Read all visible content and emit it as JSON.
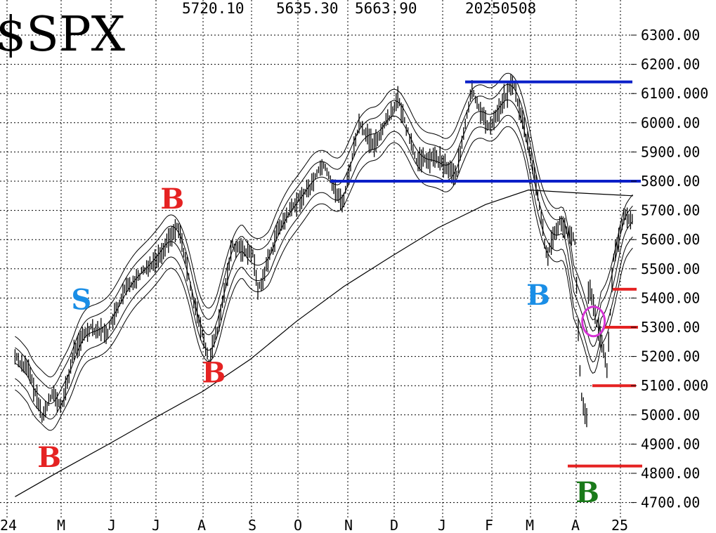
{
  "header": {
    "symbol": "$SPX",
    "high": "5720.10",
    "low": "5635.30",
    "close": "5663.90",
    "date": "20250508"
  },
  "chart_data": {
    "type": "line",
    "title": "$SPX",
    "y_ticks": [
      "6300.00",
      "6200.00",
      "6100.000",
      "6000.00",
      "5900.00",
      "5800.00",
      "5700.00",
      "5600.00",
      "5500.00",
      "5400.00",
      "5300.00",
      "5200.00",
      "5100.000",
      "5000.00",
      "4900.00",
      "4800.00",
      "4700.00"
    ],
    "x_ticks": [
      "24",
      "M",
      "J",
      "J",
      "A",
      "S",
      "O",
      "N",
      "D",
      "J",
      "F",
      "M",
      "A",
      "25"
    ],
    "ylim": [
      4690,
      6330
    ],
    "grid": true,
    "price": {
      "x": [
        "2024-04-01",
        "2024-04-10",
        "2024-04-19",
        "2024-04-25",
        "2024-05-01",
        "2024-05-10",
        "2024-05-20",
        "2024-05-31",
        "2024-06-12",
        "2024-06-21",
        "2024-07-03",
        "2024-07-16",
        "2024-07-25",
        "2024-08-05",
        "2024-08-12",
        "2024-08-20",
        "2024-09-03",
        "2024-09-06",
        "2024-09-19",
        "2024-09-30",
        "2024-10-10",
        "2024-10-18",
        "2024-10-31",
        "2024-11-11",
        "2024-11-20",
        "2024-12-06",
        "2024-12-18",
        "2024-12-31",
        "2025-01-13",
        "2025-01-23",
        "2025-02-03",
        "2025-02-19",
        "2025-03-04",
        "2025-03-13",
        "2025-03-21",
        "2025-03-31",
        "2025-04-04",
        "2025-04-08",
        "2025-04-09",
        "2025-04-16",
        "2025-04-21",
        "2025-04-25",
        "2025-05-02",
        "2025-05-08"
      ],
      "y": [
        5200,
        5150,
        4990,
        5080,
        5020,
        5230,
        5300,
        5280,
        5430,
        5480,
        5540,
        5650,
        5420,
        5180,
        5320,
        5580,
        5550,
        5420,
        5630,
        5720,
        5780,
        5860,
        5720,
        6000,
        5920,
        6080,
        5870,
        5880,
        5820,
        6110,
        5980,
        6140,
        5850,
        5540,
        5660,
        5610,
        5070,
        4980,
        5450,
        5280,
        5160,
        5520,
        5680,
        5663.9
      ]
    },
    "moving_average_200": {
      "x": [
        "2024-04-01",
        "2024-05-01",
        "2024-06-01",
        "2024-07-01",
        "2024-08-01",
        "2024-09-01",
        "2024-10-01",
        "2024-11-01",
        "2024-12-01",
        "2025-01-01",
        "2025-02-01",
        "2025-03-01",
        "2025-04-01",
        "2025-05-08"
      ],
      "y": [
        4720,
        4810,
        4900,
        4990,
        5080,
        5190,
        5320,
        5440,
        5540,
        5640,
        5720,
        5770,
        5760,
        5750
      ]
    },
    "horizontal_levels": [
      {
        "value": 6140,
        "color": "#0a1fc8"
      },
      {
        "value": 5800,
        "color": "#0a1fc8"
      },
      {
        "value": 5430,
        "color": "#e52222"
      },
      {
        "value": 5300,
        "color": "#e52222"
      },
      {
        "value": 5100,
        "color": "#e52222"
      },
      {
        "value": 4825,
        "color": "#e52222"
      }
    ],
    "signals": [
      {
        "label": "B",
        "color": "#e52222",
        "date": "2024-04-22",
        "value": 4855
      },
      {
        "label": "S",
        "color": "#1a8ee6",
        "date": "2024-05-14",
        "value": 5395
      },
      {
        "label": "B",
        "color": "#e52222",
        "date": "2024-07-11",
        "value": 5740
      },
      {
        "label": "B",
        "color": "#e52222",
        "date": "2024-08-07",
        "value": 5145
      },
      {
        "label": "B",
        "color": "#1a8ee6",
        "date": "2025-03-06",
        "value": 5410
      },
      {
        "label": "B",
        "color": "#1a7a1a",
        "date": "2025-04-07",
        "value": 4735
      }
    ],
    "annotations": [
      {
        "shape": "ellipse",
        "color": "#d633d6",
        "date": "2025-04-10",
        "value": 5320
      }
    ]
  }
}
